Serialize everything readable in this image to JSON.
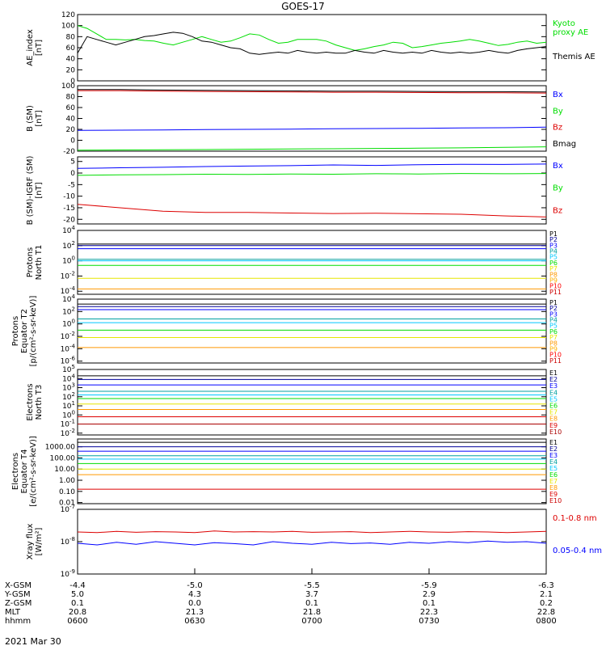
{
  "title": "GOES-17",
  "date": "2021 Mar 30",
  "colors": {
    "black": "#000000",
    "blue": "#0000ff",
    "green": "#00dd00",
    "red": "#dd0000",
    "navy": "#000099",
    "teal": "#00a0a0",
    "cyan": "#00c8ff",
    "yellow": "#e6e600",
    "orange": "#ff9900",
    "darkred": "#aa0000"
  },
  "chart_data": [
    {
      "type": "line",
      "ylabel": "AE_index\n[nT]",
      "ylim": [
        0,
        120
      ],
      "yticks": [
        "0",
        "20",
        "40",
        "60",
        "80",
        "100",
        "120"
      ],
      "legend": [
        "Kyoto\nproxy AE",
        "Themis AE"
      ],
      "series": [
        {
          "name": "Kyoto proxy AE",
          "color": "green",
          "values": [
            100,
            95,
            85,
            75,
            75,
            74,
            75,
            73,
            72,
            68,
            65,
            70,
            75,
            80,
            75,
            70,
            72,
            78,
            85,
            83,
            75,
            68,
            70,
            75,
            75,
            75,
            72,
            65,
            60,
            55,
            58,
            62,
            65,
            70,
            68,
            60,
            62,
            65,
            68,
            70,
            72,
            75,
            72,
            68,
            64,
            66,
            70,
            72,
            68,
            70
          ]
        },
        {
          "name": "Themis AE",
          "color": "black",
          "values": [
            50,
            80,
            75,
            70,
            65,
            70,
            75,
            80,
            82,
            85,
            88,
            86,
            80,
            72,
            70,
            65,
            60,
            58,
            50,
            48,
            50,
            52,
            50,
            55,
            52,
            50,
            52,
            50,
            50,
            55,
            52,
            50,
            55,
            52,
            50,
            52,
            50,
            55,
            52,
            50,
            52,
            50,
            52,
            55,
            52,
            50,
            55,
            58,
            60,
            62
          ]
        }
      ]
    },
    {
      "type": "line",
      "ylabel": "B (SM)\n[nT]",
      "ylim": [
        -20,
        100
      ],
      "yticks": [
        "-20",
        "0",
        "20",
        "40",
        "60",
        "80",
        "100"
      ],
      "legend": [
        "Bx",
        "By",
        "Bz",
        "Bmag"
      ],
      "series": [
        {
          "name": "Bx",
          "color": "blue",
          "values": [
            18,
            18.5,
            19,
            19.5,
            20,
            20.5,
            21,
            21.5,
            22,
            22.5,
            23,
            24
          ]
        },
        {
          "name": "By",
          "color": "green",
          "values": [
            -18,
            -17.8,
            -17.5,
            -17,
            -16.5,
            -16,
            -15.5,
            -15,
            -14.5,
            -14,
            -13,
            -12
          ]
        },
        {
          "name": "Bz",
          "color": "red",
          "values": [
            91,
            91,
            90,
            89.5,
            89,
            88.5,
            88,
            88,
            87.5,
            87,
            87,
            86.5
          ]
        },
        {
          "name": "Bmag",
          "color": "black",
          "values": [
            93,
            93,
            92,
            91.5,
            91,
            90.5,
            90,
            90,
            89.5,
            89,
            89,
            88.5
          ]
        }
      ]
    },
    {
      "type": "line",
      "ylabel": "B (SM)-IGRF (SM)\n[nT]",
      "ylim": [
        -22,
        7
      ],
      "yticks": [
        "-20",
        "-15",
        "-10",
        "-5",
        "0",
        "5"
      ],
      "legend": [
        "Bx",
        "By",
        "Bz"
      ],
      "series": [
        {
          "name": "Bx",
          "color": "blue",
          "values": [
            2,
            2.3,
            2.5,
            2.8,
            3,
            3.2,
            3.5,
            3.3,
            3.6,
            3.8,
            3.7,
            3.9
          ]
        },
        {
          "name": "By",
          "color": "green",
          "values": [
            -1,
            -0.8,
            -0.7,
            -0.5,
            -0.6,
            -0.4,
            -0.5,
            -0.3,
            -0.4,
            -0.2,
            -0.3,
            -0.2
          ]
        },
        {
          "name": "Bz",
          "color": "red",
          "values": [
            -13.5,
            -15,
            -16.5,
            -17,
            -17,
            -17.3,
            -17.5,
            -17.4,
            -17.6,
            -17.8,
            -18.5,
            -19
          ]
        }
      ]
    },
    {
      "type": "line",
      "ylabel": "Protons\nNorth T1",
      "ylog": true,
      "ylim": [
        -4.4,
        4
      ],
      "yticks": [
        "10^-4",
        "10^-2",
        "10^0",
        "10^2",
        "10^4"
      ],
      "legend": [
        "P1",
        "P2",
        "P3",
        "P4",
        "P5",
        "P6",
        "P7",
        "P8",
        "P9",
        "P10",
        "P11"
      ],
      "series": [
        {
          "name": "P1",
          "color": "black",
          "values": [
            2.2
          ]
        },
        {
          "name": "P2",
          "color": "navy",
          "values": [
            2.0
          ]
        },
        {
          "name": "P3",
          "color": "blue",
          "values": [
            1.6
          ]
        },
        {
          "name": "P4",
          "color": "teal",
          "values": [
            0.2
          ]
        },
        {
          "name": "P5",
          "color": "cyan",
          "values": [
            0.0
          ]
        },
        {
          "name": "P6",
          "color": "green",
          "values": [
            -0.6
          ]
        },
        {
          "name": "P7",
          "color": "yellow",
          "values": [
            -2.3
          ]
        },
        {
          "name": "P8",
          "color": "orange",
          "values": [
            -3.7
          ]
        }
      ]
    },
    {
      "type": "line",
      "ylabel": "Protons\nEquator T2\n[p/(cm²-s-sr-keV)]",
      "ylog": true,
      "ylim": [
        -6.3,
        4
      ],
      "yticks": [
        "10^-6",
        "10^-4",
        "10^-2",
        "10^0",
        "10^2",
        "10^4"
      ],
      "legend": [
        "P1",
        "P2",
        "P3",
        "P4",
        "P5",
        "P6",
        "P7",
        "P8",
        "P9",
        "P10",
        "P11"
      ],
      "series": [
        {
          "name": "P1",
          "color": "black",
          "values": [
            3.2
          ]
        },
        {
          "name": "P2",
          "color": "navy",
          "values": [
            2.8
          ]
        },
        {
          "name": "P3",
          "color": "blue",
          "values": [
            2.3
          ]
        },
        {
          "name": "P4",
          "color": "teal",
          "values": [
            0.8
          ]
        },
        {
          "name": "P5",
          "color": "cyan",
          "values": [
            0.2
          ]
        },
        {
          "name": "P6",
          "color": "green",
          "values": [
            -1.0
          ]
        },
        {
          "name": "P7",
          "color": "yellow",
          "values": [
            -2.2
          ]
        },
        {
          "name": "P8",
          "color": "orange",
          "values": [
            -3.8
          ]
        }
      ]
    },
    {
      "type": "line",
      "ylabel": "Electrons\nNorth T3",
      "ylog": true,
      "ylim": [
        -2.2,
        5
      ],
      "yticks": [
        "10^-2",
        "10^-1",
        "10^0",
        "10^1",
        "10^2",
        "10^3",
        "10^4",
        "10^5"
      ],
      "legend": [
        "E1",
        "E2",
        "E3",
        "E4",
        "E5",
        "E6",
        "E7",
        "E8",
        "E9",
        "E10"
      ],
      "series": [
        {
          "name": "E1",
          "color": "black",
          "values": [
            4.3
          ]
        },
        {
          "name": "E2",
          "color": "navy",
          "values": [
            3.9
          ]
        },
        {
          "name": "E3",
          "color": "blue",
          "values": [
            3.3
          ]
        },
        {
          "name": "E4",
          "color": "teal",
          "values": [
            2.6
          ]
        },
        {
          "name": "E5",
          "color": "cyan",
          "values": [
            2.2
          ]
        },
        {
          "name": "E6",
          "color": "green",
          "values": [
            1.8
          ]
        },
        {
          "name": "E7",
          "color": "yellow",
          "values": [
            1.2
          ]
        },
        {
          "name": "E8",
          "color": "orange",
          "values": [
            0.6
          ]
        },
        {
          "name": "E9",
          "color": "red",
          "values": [
            -0.2
          ]
        },
        {
          "name": "E10",
          "color": "darkred",
          "values": [
            -1.0
          ]
        }
      ]
    },
    {
      "type": "line",
      "ylabel": "Electrons\nEquator T4\n[e/(cm²-s-sr-keV)]",
      "ylog": true,
      "ylim": [
        -2.1,
        3.7
      ],
      "yticks": [
        "0.01",
        "0.10",
        "1.00",
        "10.00",
        "100.00",
        "1000.00"
      ],
      "legend": [
        "E1",
        "E2",
        "E3",
        "E4",
        "E5",
        "E6",
        "E7",
        "E8",
        "E9",
        "E10"
      ],
      "series": [
        {
          "name": "E1",
          "color": "black",
          "values": [
            3.4
          ]
        },
        {
          "name": "E2",
          "color": "navy",
          "values": [
            3.0
          ]
        },
        {
          "name": "E3",
          "color": "blue",
          "values": [
            2.6
          ]
        },
        {
          "name": "E4",
          "color": "teal",
          "values": [
            2.2
          ]
        },
        {
          "name": "E5",
          "color": "cyan",
          "values": [
            1.9
          ]
        },
        {
          "name": "E6",
          "color": "green",
          "values": [
            1.5
          ]
        },
        {
          "name": "E7",
          "color": "yellow",
          "values": [
            1.0
          ]
        },
        {
          "name": "E8",
          "color": "orange",
          "values": [
            0.5
          ]
        },
        {
          "name": "E9",
          "color": "red",
          "values": [
            -0.8
          ]
        }
      ]
    },
    {
      "type": "line",
      "ylabel": "Xray flux\n[W/m²]",
      "ylog": true,
      "ylim": [
        -9,
        -7
      ],
      "yticks": [
        "10^-9",
        "10^-8",
        "10^-7"
      ],
      "legend": [
        "0.1-0.8 nm",
        "0.05-0.4 nm"
      ],
      "series": [
        {
          "name": "0.1-0.8 nm",
          "color": "red",
          "values": [
            -7.7,
            -7.72,
            -7.68,
            -7.71,
            -7.69,
            -7.7,
            -7.72,
            -7.67,
            -7.7,
            -7.69,
            -7.7,
            -7.68,
            -7.71,
            -7.7,
            -7.69,
            -7.72,
            -7.7,
            -7.68,
            -7.7,
            -7.71,
            -7.69,
            -7.7,
            -7.72,
            -7.7,
            -7.68
          ]
        },
        {
          "name": "0.05-0.4 nm",
          "color": "blue",
          "values": [
            -8.05,
            -8.1,
            -8.02,
            -8.08,
            -8.0,
            -8.05,
            -8.1,
            -8.03,
            -8.06,
            -8.1,
            -8.0,
            -8.05,
            -8.08,
            -8.02,
            -8.06,
            -8.04,
            -8.08,
            -8.02,
            -8.05,
            -8.0,
            -8.03,
            -7.98,
            -8.02,
            -8.0,
            -8.05
          ]
        }
      ]
    }
  ],
  "x_axis": {
    "rows": [
      {
        "label": "X-GSM",
        "values": [
          "-4.4",
          "-5.0",
          "-5.5",
          "-5.9",
          "-6.3"
        ]
      },
      {
        "label": "Y-GSM",
        "values": [
          "5.0",
          "4.3",
          "3.7",
          "2.9",
          "2.1"
        ]
      },
      {
        "label": "Z-GSM",
        "values": [
          "0.1",
          "0.0",
          "0.1",
          "0.1",
          "0.2"
        ]
      },
      {
        "label": "MLT",
        "values": [
          "20.8",
          "21.3",
          "21.8",
          "22.3",
          "22.8"
        ]
      },
      {
        "label": "hhmm",
        "values": [
          "0600",
          "0630",
          "0700",
          "0730",
          "0800"
        ]
      }
    ]
  }
}
